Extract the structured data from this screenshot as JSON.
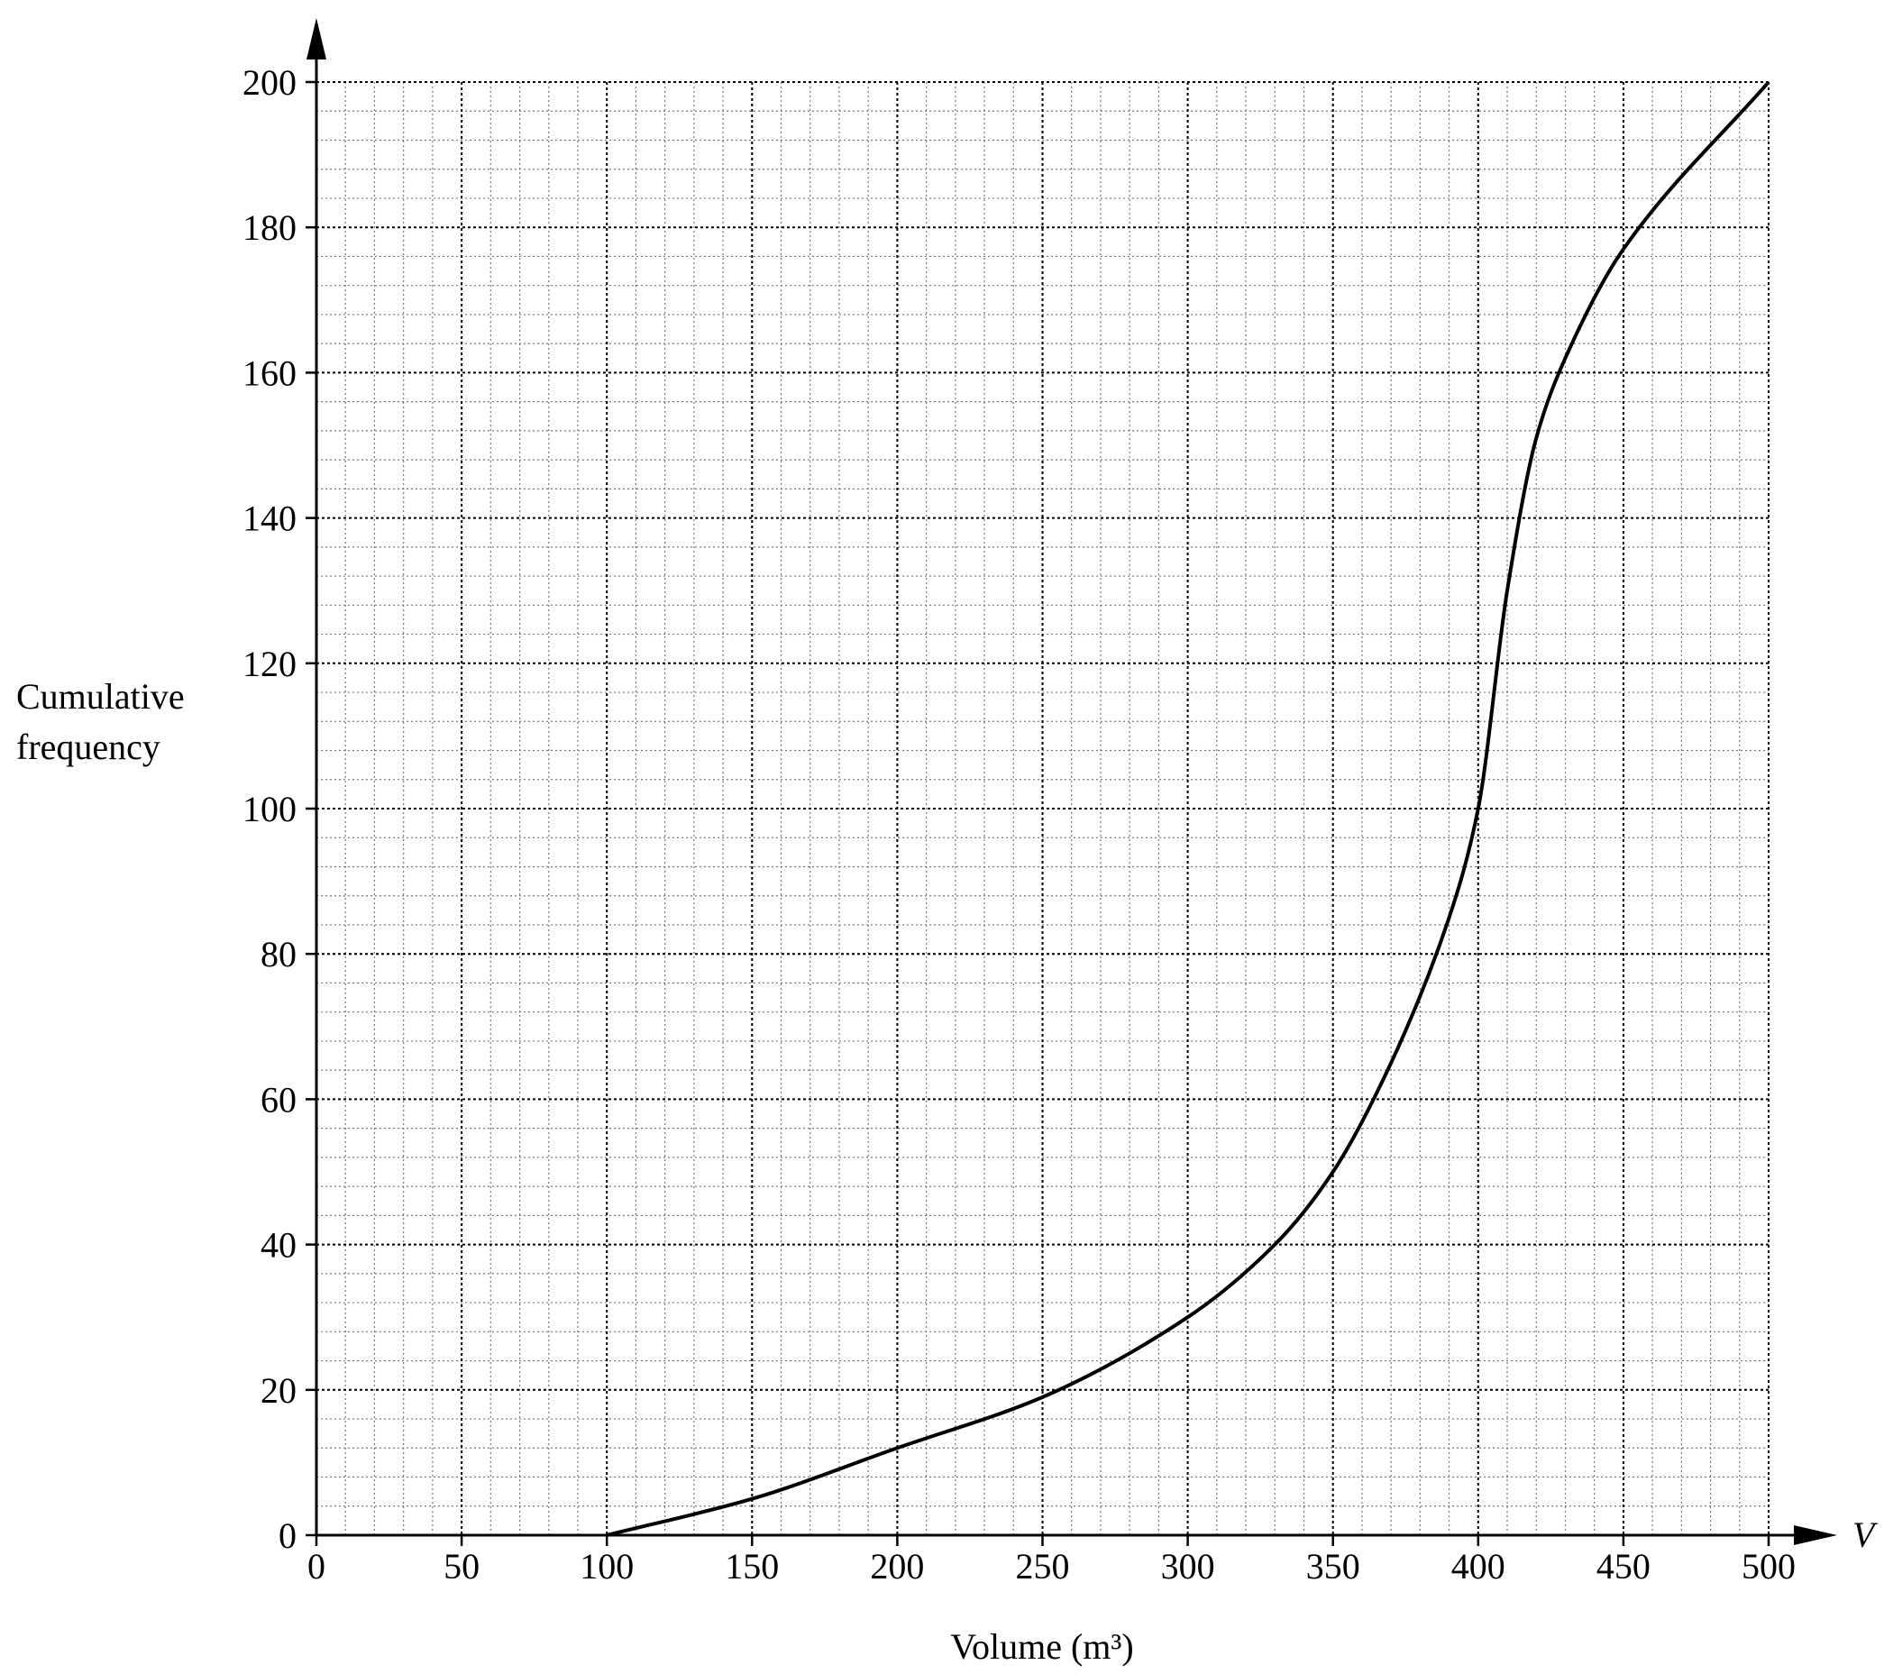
{
  "chart_data": {
    "type": "line",
    "x_label": "Volume (m³)",
    "y_label": "Cumulative frequency",
    "x_axis_symbol": "V",
    "series": [
      {
        "color": "#000000",
        "x": [
          100,
          150,
          200,
          250,
          300,
          330,
          350,
          370,
          390,
          400,
          410,
          420,
          430,
          450,
          500
        ],
        "values": [
          0,
          5,
          12,
          19,
          30,
          40,
          50,
          65,
          85,
          100,
          130,
          151,
          162,
          177,
          200
        ]
      }
    ],
    "xlim": [
      0,
      500
    ],
    "xticks": [
      0,
      50,
      100,
      150,
      200,
      250,
      300,
      350,
      400,
      450,
      500
    ],
    "ylim": [
      0,
      200
    ],
    "yticks": [
      0,
      20,
      40,
      60,
      80,
      100,
      120,
      140,
      160,
      180,
      200
    ],
    "grid": true
  }
}
